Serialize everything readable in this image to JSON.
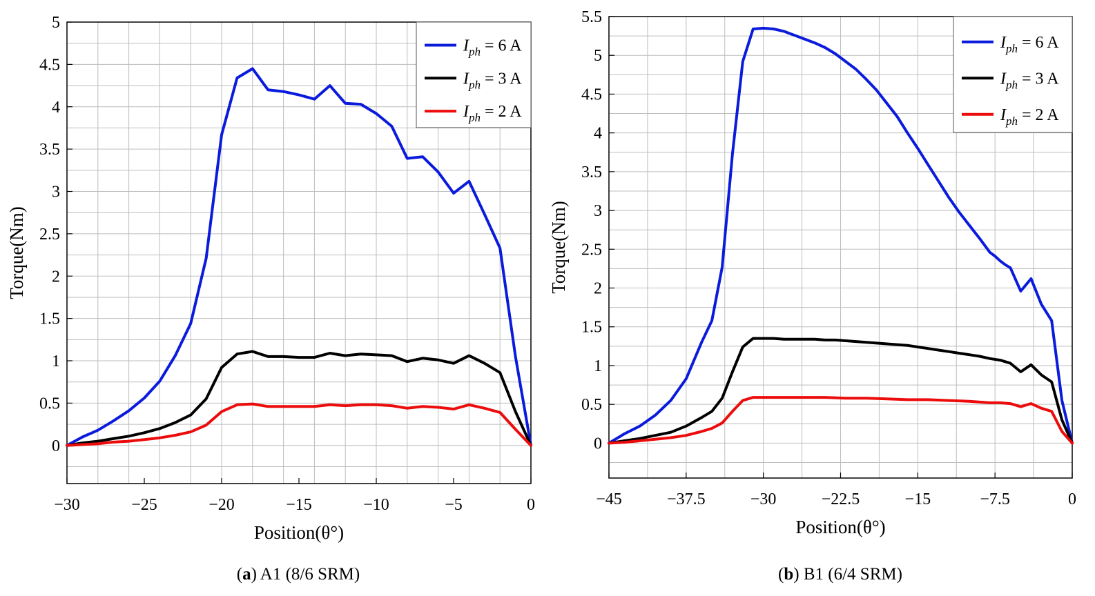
{
  "figure": {
    "panels": [
      {
        "caption_letter": "a",
        "caption_text": "A1 (8/6 SRM)",
        "legend_names": [
          "I_ph = 6 A",
          "I_ph = 3 A",
          "I_ph = 2 A"
        ]
      },
      {
        "caption_letter": "b",
        "caption_text": "B1 (6/4 SRM)",
        "legend_names": [
          "I_ph = 6 A",
          "I_ph = 3 A",
          "I_ph = 2 A"
        ]
      }
    ]
  },
  "chart_data": [
    {
      "type": "line",
      "title": "(a) A1 (8/6 SRM)",
      "xlabel": "Position(θ°)",
      "ylabel": "Torque(Nm)",
      "xlim": [
        -30,
        0
      ],
      "ylim": [
        -0.45,
        5
      ],
      "xticks": [
        -30,
        -25,
        -20,
        -15,
        -10,
        -5,
        0
      ],
      "xtick_labels": [
        "−30",
        "−25",
        "−20",
        "−15",
        "−10",
        "−5",
        "0"
      ],
      "yticks": [
        0,
        0.5,
        1,
        1.5,
        2,
        2.5,
        3,
        3.5,
        4,
        4.5,
        5
      ],
      "ytick_labels": [
        "0",
        "0.5",
        "1",
        "1.5",
        "2",
        "2.5",
        "3",
        "3.5",
        "4",
        "4.5",
        "5"
      ],
      "grid_x": [
        -30,
        -28,
        -26,
        -24,
        -22,
        -20,
        -18,
        -16,
        -14,
        -12,
        -10,
        -8,
        -6,
        -4,
        -2,
        0
      ],
      "grid_y": [
        -0.25,
        0,
        0.25,
        0.5,
        0.75,
        1,
        1.25,
        1.5,
        1.75,
        2,
        2.25,
        2.5,
        2.75,
        3,
        3.25,
        3.5,
        3.75,
        4,
        4.25,
        4.5,
        4.75,
        5
      ],
      "legend_position": "top-right",
      "series": [
        {
          "name": "Iph = 6 A",
          "sym": "I",
          "sub": "ph",
          "rest": " = 6 A",
          "color": "#0a1bdc",
          "x": [
            -30,
            -29,
            -28,
            -27,
            -26,
            -25,
            -24,
            -23,
            -22,
            -21,
            -20,
            -19,
            -18,
            -17,
            -16,
            -15,
            -14,
            -13,
            -12,
            -11,
            -10,
            -9,
            -8,
            -7,
            -6,
            -5,
            -4,
            -3,
            -2,
            -1,
            0
          ],
          "y": [
            0,
            0.1,
            0.18,
            0.29,
            0.41,
            0.56,
            0.76,
            1.06,
            1.44,
            2.21,
            3.67,
            4.34,
            4.45,
            4.2,
            4.18,
            4.14,
            4.09,
            4.25,
            4.04,
            4.03,
            3.92,
            3.77,
            3.39,
            3.41,
            3.23,
            2.98,
            3.12,
            2.73,
            2.33,
            1.05,
            0
          ]
        },
        {
          "name": "Iph = 3 A",
          "sym": "I",
          "sub": "ph",
          "rest": " = 3 A",
          "color": "#000000",
          "x": [
            -30,
            -29,
            -28,
            -27,
            -26,
            -25,
            -24,
            -23,
            -22,
            -21,
            -20,
            -19,
            -18,
            -17,
            -16,
            -15,
            -14,
            -13,
            -12,
            -11,
            -10,
            -9,
            -8,
            -7,
            -6,
            -5,
            -4,
            -3,
            -2,
            -1,
            0
          ],
          "y": [
            0,
            0.03,
            0.05,
            0.08,
            0.11,
            0.15,
            0.2,
            0.27,
            0.36,
            0.55,
            0.92,
            1.08,
            1.11,
            1.05,
            1.05,
            1.04,
            1.04,
            1.09,
            1.06,
            1.08,
            1.07,
            1.06,
            0.99,
            1.03,
            1.01,
            0.97,
            1.06,
            0.97,
            0.86,
            0.4,
            0
          ]
        },
        {
          "name": "Iph = 2 A",
          "sym": "I",
          "sub": "ph",
          "rest": " = 2 A",
          "color": "#ec0c0c",
          "x": [
            -30,
            -29,
            -28,
            -27,
            -26,
            -25,
            -24,
            -23,
            -22,
            -21,
            -20,
            -19,
            -18,
            -17,
            -16,
            -15,
            -14,
            -13,
            -12,
            -11,
            -10,
            -9,
            -8,
            -7,
            -6,
            -5,
            -4,
            -3,
            -2,
            -1,
            0
          ],
          "y": [
            0,
            0.01,
            0.02,
            0.04,
            0.05,
            0.07,
            0.09,
            0.12,
            0.16,
            0.24,
            0.4,
            0.48,
            0.49,
            0.46,
            0.46,
            0.46,
            0.46,
            0.48,
            0.47,
            0.48,
            0.48,
            0.47,
            0.44,
            0.46,
            0.45,
            0.43,
            0.48,
            0.44,
            0.39,
            0.19,
            0
          ]
        }
      ]
    },
    {
      "type": "line",
      "title": "(b) B1 (6/4 SRM)",
      "xlabel": "Position(θ°)",
      "ylabel": "Torque(Nm)",
      "xlim": [
        -45,
        0
      ],
      "ylim": [
        -0.45,
        5.5
      ],
      "xticks": [
        -45,
        -37.5,
        -30,
        -22.5,
        -15,
        -7.5,
        0
      ],
      "xtick_labels": [
        "−45",
        "−37.5",
        "−30",
        "−22.5",
        "−15",
        "−7.5",
        "0"
      ],
      "yticks": [
        0,
        0.5,
        1,
        1.5,
        2,
        2.5,
        3,
        3.5,
        4,
        4.5,
        5,
        5.5
      ],
      "ytick_labels": [
        "0",
        "0.5",
        "1",
        "1.5",
        "2",
        "2.5",
        "3",
        "3.5",
        "4",
        "4.5",
        "5",
        "5.5"
      ],
      "grid_x": [
        -45,
        -41.25,
        -37.5,
        -33.75,
        -30,
        -26.25,
        -22.5,
        -18.75,
        -15,
        -11.25,
        -7.5,
        -3.75,
        0
      ],
      "grid_y": [
        -0.25,
        0,
        0.25,
        0.5,
        0.75,
        1,
        1.25,
        1.5,
        1.75,
        2,
        2.25,
        2.5,
        2.75,
        3,
        3.25,
        3.5,
        3.75,
        4,
        4.25,
        4.5,
        4.75,
        5,
        5.25,
        5.5
      ],
      "legend_position": "top-right",
      "series": [
        {
          "name": "Iph = 6 A",
          "sym": "I",
          "sub": "ph",
          "rest": " = 6 A",
          "color": "#0a1bdc",
          "x": [
            -45,
            -43.5,
            -42,
            -40.5,
            -39,
            -37.5,
            -36,
            -35,
            -34,
            -33,
            -32,
            -31,
            -30,
            -29,
            -28,
            -27,
            -26,
            -25,
            -24,
            -23,
            -22.5,
            -21,
            -20,
            -19,
            -18,
            -17,
            -16,
            -15,
            -14,
            -13,
            -12,
            -11,
            -10,
            -9,
            -8,
            -7.5,
            -7,
            -6.5,
            -6,
            -5,
            -4,
            -3,
            -2,
            -1,
            0
          ],
          "y": [
            0,
            0.12,
            0.22,
            0.36,
            0.55,
            0.83,
            1.3,
            1.58,
            2.27,
            3.73,
            4.92,
            5.34,
            5.35,
            5.34,
            5.31,
            5.26,
            5.21,
            5.16,
            5.1,
            5.02,
            4.97,
            4.82,
            4.69,
            4.55,
            4.38,
            4.21,
            4.0,
            3.8,
            3.59,
            3.38,
            3.17,
            2.98,
            2.81,
            2.64,
            2.46,
            2.41,
            2.35,
            2.3,
            2.26,
            1.96,
            2.12,
            1.79,
            1.58,
            0.55,
            0
          ]
        },
        {
          "name": "Iph = 3 A",
          "sym": "I",
          "sub": "ph",
          "rest": " = 3 A",
          "color": "#000000",
          "x": [
            -45,
            -43.5,
            -42,
            -40.5,
            -39,
            -37.5,
            -36,
            -35,
            -34,
            -33,
            -32,
            -31,
            -30,
            -29,
            -28,
            -27,
            -26,
            -25,
            -24,
            -23,
            -22,
            -21,
            -20,
            -19,
            -18,
            -17,
            -16,
            -15,
            -14,
            -13,
            -12,
            -11,
            -10,
            -9,
            -8,
            -7,
            -6,
            -5,
            -4,
            -3,
            -2,
            -1,
            0
          ],
          "y": [
            0,
            0.03,
            0.06,
            0.1,
            0.14,
            0.22,
            0.33,
            0.41,
            0.58,
            0.92,
            1.24,
            1.35,
            1.35,
            1.35,
            1.34,
            1.34,
            1.34,
            1.34,
            1.33,
            1.33,
            1.32,
            1.31,
            1.3,
            1.29,
            1.28,
            1.27,
            1.26,
            1.24,
            1.22,
            1.2,
            1.18,
            1.16,
            1.14,
            1.12,
            1.09,
            1.07,
            1.03,
            0.92,
            1.01,
            0.88,
            0.79,
            0.3,
            0
          ]
        },
        {
          "name": "Iph = 2 A",
          "sym": "I",
          "sub": "ph",
          "rest": " = 2 A",
          "color": "#ec0c0c",
          "x": [
            -45,
            -43.5,
            -42,
            -40.5,
            -39,
            -37.5,
            -36,
            -35,
            -34,
            -33,
            -32,
            -31,
            -30,
            -28,
            -26,
            -24,
            -22,
            -20,
            -18,
            -16,
            -14,
            -12,
            -10,
            -8,
            -7,
            -6,
            -5,
            -4,
            -3,
            -2,
            -1,
            0
          ],
          "y": [
            0,
            0.01,
            0.03,
            0.05,
            0.07,
            0.1,
            0.15,
            0.19,
            0.26,
            0.41,
            0.55,
            0.59,
            0.59,
            0.59,
            0.59,
            0.59,
            0.58,
            0.58,
            0.57,
            0.56,
            0.56,
            0.55,
            0.54,
            0.52,
            0.52,
            0.51,
            0.47,
            0.51,
            0.45,
            0.41,
            0.15,
            0
          ]
        }
      ]
    }
  ]
}
